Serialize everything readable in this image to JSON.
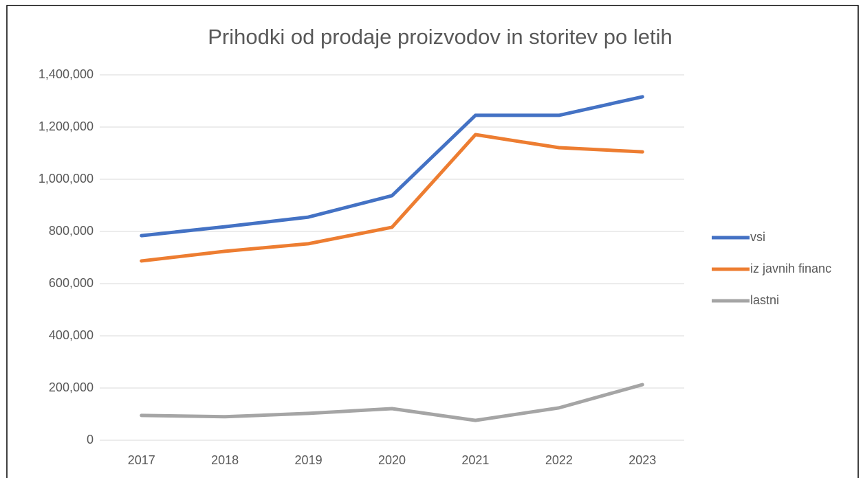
{
  "chart_data": {
    "type": "line",
    "title": "Prihodki od prodaje proizvodov in storitev po letih",
    "categories": [
      "2017",
      "2018",
      "2019",
      "2020",
      "2021",
      "2022",
      "2023"
    ],
    "series": [
      {
        "name": "vsi",
        "color": "#4472c4",
        "values": [
          784000,
          818000,
          855000,
          937000,
          1245000,
          1245000,
          1316000
        ]
      },
      {
        "name": "iz javnih financ",
        "color": "#ed7d31",
        "values": [
          687000,
          724000,
          753000,
          816000,
          1171000,
          1121000,
          1105000
        ]
      },
      {
        "name": "lastni",
        "color": "#a5a5a5",
        "values": [
          95000,
          90000,
          103000,
          121000,
          76000,
          124000,
          213000
        ]
      }
    ],
    "ylim": [
      0,
      1400000
    ],
    "yticks": [
      0,
      {
        "value": 200000,
        "label": "200,000"
      },
      {
        "value": 400000,
        "label": "400,000"
      },
      {
        "value": 600000,
        "label": "600,000"
      },
      {
        "value": 800000,
        "label": "800,000"
      },
      {
        "value": 1000000,
        "label": "1,000,000"
      },
      {
        "value": 1200000,
        "label": "1,200,000"
      },
      {
        "value": 1400000,
        "label": "1,400,000"
      }
    ],
    "grid": true,
    "legend": "right"
  }
}
